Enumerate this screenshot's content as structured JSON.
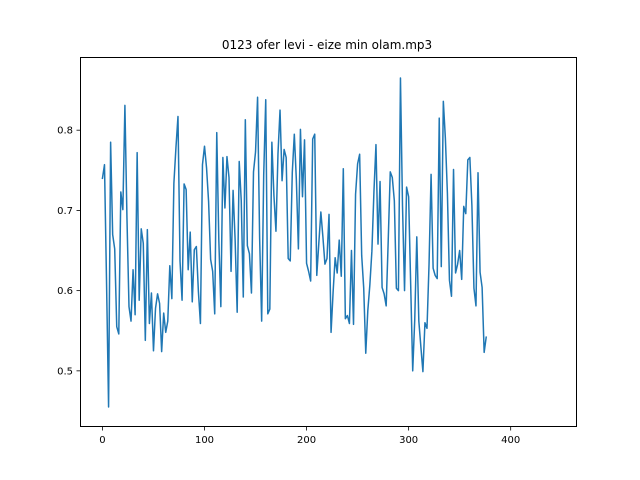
{
  "chart_data": {
    "type": "line",
    "title": "0123 ofer levi - eize min olam.mp3",
    "xlabel": "",
    "ylabel": "",
    "xlim": [
      -22,
      464
    ],
    "ylim": [
      0.43,
      0.89
    ],
    "xticks": [
      0,
      100,
      200,
      300,
      400
    ],
    "yticks": [
      0.5,
      0.6,
      0.7,
      0.8
    ],
    "ytick_labels": [
      "0.5",
      "0.6",
      "0.7",
      "0.8"
    ],
    "grid": false,
    "series": [
      {
        "color": "#1f77b4",
        "x_start": 0,
        "x_step": 2,
        "values": [
          0.74,
          0.757,
          0.611,
          0.455,
          0.785,
          0.67,
          0.652,
          0.555,
          0.546,
          0.723,
          0.701,
          0.831,
          0.691,
          0.58,
          0.562,
          0.626,
          0.57,
          0.772,
          0.588,
          0.677,
          0.659,
          0.538,
          0.676,
          0.559,
          0.597,
          0.525,
          0.578,
          0.596,
          0.584,
          0.524,
          0.572,
          0.548,
          0.562,
          0.631,
          0.59,
          0.734,
          0.778,
          0.817,
          0.637,
          0.588,
          0.733,
          0.726,
          0.626,
          0.673,
          0.586,
          0.651,
          0.655,
          0.599,
          0.559,
          0.757,
          0.78,
          0.753,
          0.711,
          0.639,
          0.624,
          0.571,
          0.797,
          0.664,
          0.58,
          0.766,
          0.703,
          0.767,
          0.741,
          0.624,
          0.725,
          0.663,
          0.573,
          0.761,
          0.712,
          0.592,
          0.813,
          0.656,
          0.646,
          0.597,
          0.748,
          0.773,
          0.841,
          0.666,
          0.562,
          0.744,
          0.838,
          0.571,
          0.577,
          0.785,
          0.719,
          0.674,
          0.771,
          0.825,
          0.737,
          0.776,
          0.766,
          0.64,
          0.637,
          0.747,
          0.795,
          0.738,
          0.652,
          0.801,
          0.717,
          0.788,
          0.634,
          0.624,
          0.612,
          0.789,
          0.795,
          0.619,
          0.659,
          0.698,
          0.667,
          0.633,
          0.64,
          0.695,
          0.548,
          0.598,
          0.641,
          0.622,
          0.663,
          0.618,
          0.752,
          0.565,
          0.569,
          0.559,
          0.65,
          0.558,
          0.72,
          0.758,
          0.77,
          0.644,
          0.603,
          0.522,
          0.575,
          0.607,
          0.649,
          0.723,
          0.782,
          0.658,
          0.736,
          0.604,
          0.596,
          0.581,
          0.662,
          0.748,
          0.741,
          0.712,
          0.603,
          0.6,
          0.865,
          0.706,
          0.6,
          0.729,
          0.717,
          0.608,
          0.5,
          0.564,
          0.667,
          0.562,
          0.53,
          0.499,
          0.56,
          0.553,
          0.633,
          0.745,
          0.628,
          0.619,
          0.615,
          0.815,
          0.63,
          0.836,
          0.79,
          0.721,
          0.613,
          0.593,
          0.751,
          0.622,
          0.633,
          0.65,
          0.614,
          0.705,
          0.696,
          0.763,
          0.766,
          0.706,
          0.603,
          0.581,
          0.747,
          0.623,
          0.604,
          0.523,
          0.542
        ]
      }
    ]
  }
}
